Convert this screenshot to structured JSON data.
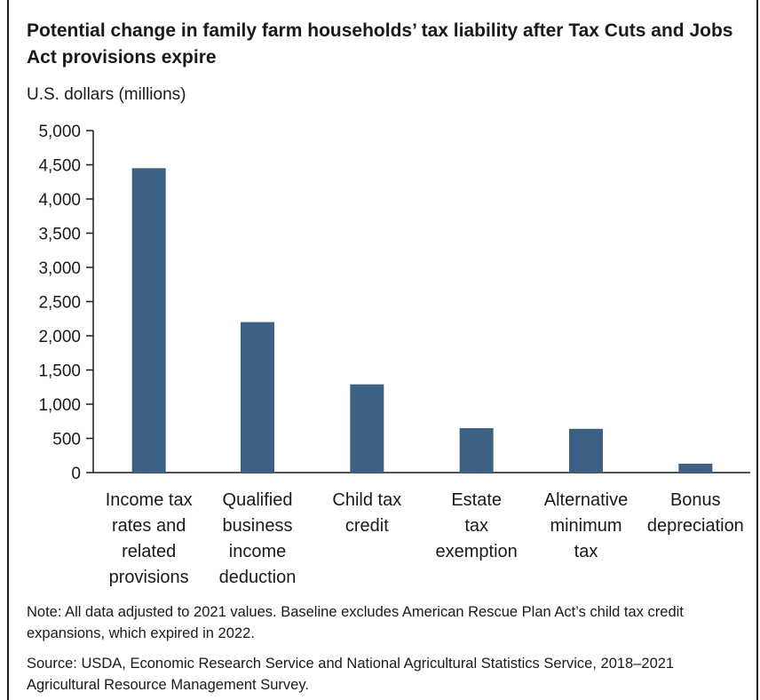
{
  "title": "Potential change in family farm households’ tax liability after Tax Cuts and Jobs Act provisions expire",
  "note": "Note: All data adjusted to 2021 values. Baseline excludes American Rescue Plan Act’s child tax credit expansions, which expired in 2022.",
  "source": "Source: USDA, Economic Research Service and National Agricultural Statistics Service, 2018–2021 Agricultural Resource Management Survey.",
  "colors": {
    "bar": "#3d6185",
    "axis": "#1a1a1a"
  },
  "chart_data": {
    "type": "bar",
    "title": "Potential change in family farm households’ tax liability after Tax Cuts and Jobs Act provisions expire",
    "ylabel": "U.S. dollars (millions)",
    "xlabel": "",
    "ylim": [
      0,
      5000
    ],
    "yticks": [
      0,
      500,
      1000,
      1500,
      2000,
      2500,
      3000,
      3500,
      4000,
      4500,
      5000
    ],
    "ytick_labels": [
      "0",
      "500",
      "1,000",
      "1,500",
      "2,000",
      "2,500",
      "3,000",
      "3,500",
      "4,000",
      "4,500",
      "5,000"
    ],
    "categories": [
      "Income tax rates and related provisions",
      "Qualified business income deduction",
      "Child tax credit",
      "Estate tax exemption",
      "Alternative minimum tax",
      "Bonus depreciation"
    ],
    "category_lines": [
      [
        "Income tax",
        "rates and",
        "related",
        "provisions"
      ],
      [
        "Qualified",
        "business",
        "income",
        "deduction"
      ],
      [
        "Child tax",
        "credit"
      ],
      [
        "Estate",
        "tax",
        "exemption"
      ],
      [
        "Alternative",
        "minimum",
        "tax"
      ],
      [
        "Bonus",
        "depreciation"
      ]
    ],
    "values": [
      4450,
      2200,
      1290,
      650,
      640,
      130
    ],
    "grid": false,
    "legend": "none"
  }
}
